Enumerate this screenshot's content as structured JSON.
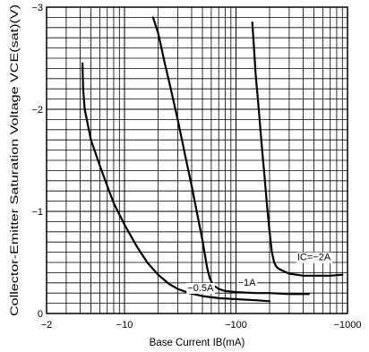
{
  "chart_data": {
    "type": "line",
    "title": "",
    "xlabel": "Base Current IB(mA)",
    "ylabel": "Collector-Emitter Saturation Voltage VCE(sat)(V)",
    "x_scale": "log",
    "xlim": [
      -2,
      -1000
    ],
    "ylim": [
      0,
      -3
    ],
    "x_ticks": [
      {
        "value": -2,
        "label": "−2"
      },
      {
        "value": -10,
        "label": "−10"
      },
      {
        "value": -100,
        "label": "−100"
      },
      {
        "value": -1000,
        "label": "−1000"
      }
    ],
    "y_ticks": [
      {
        "value": 0,
        "label": "0"
      },
      {
        "value": -1,
        "label": "−1"
      },
      {
        "value": -2,
        "label": "−2"
      },
      {
        "value": -3,
        "label": "−3"
      }
    ],
    "grid": true,
    "series": [
      {
        "name": "−0.5A",
        "x": [
          -4.2,
          -4.25,
          -4.4,
          -5,
          -6,
          -7,
          -8,
          -10,
          -13,
          -16,
          -20,
          -25,
          -30,
          -38,
          -50,
          -70,
          -100,
          -150,
          -200
        ],
        "y": [
          -2.45,
          -2.2,
          -2.0,
          -1.7,
          -1.45,
          -1.25,
          -1.08,
          -0.87,
          -0.65,
          -0.5,
          -0.38,
          -0.29,
          -0.24,
          -0.2,
          -0.17,
          -0.15,
          -0.14,
          -0.13,
          -0.12
        ]
      },
      {
        "name": "−1A",
        "x": [
          -18,
          -20,
          -23,
          -26,
          -30,
          -35,
          -40,
          -45,
          -50,
          -55,
          -58,
          -62,
          -70,
          -80,
          -100,
          -150,
          -200,
          -300,
          -450
        ],
        "y": [
          -2.9,
          -2.75,
          -2.45,
          -2.2,
          -1.9,
          -1.55,
          -1.25,
          -0.97,
          -0.72,
          -0.45,
          -0.35,
          -0.28,
          -0.24,
          -0.22,
          -0.21,
          -0.2,
          -0.2,
          -0.19,
          -0.19
        ]
      },
      {
        "name": "IC=−2A",
        "x": [
          -140,
          -145,
          -150,
          -160,
          -170,
          -180,
          -190,
          -200,
          -210,
          -220,
          -230,
          -240,
          -260,
          -300,
          -400,
          -500,
          -700,
          -900
        ],
        "y": [
          -2.85,
          -2.6,
          -2.35,
          -2.0,
          -1.65,
          -1.35,
          -1.05,
          -0.8,
          -0.6,
          -0.5,
          -0.46,
          -0.44,
          -0.42,
          -0.39,
          -0.37,
          -0.37,
          -0.37,
          -0.38
        ]
      }
    ],
    "legend": "none"
  }
}
